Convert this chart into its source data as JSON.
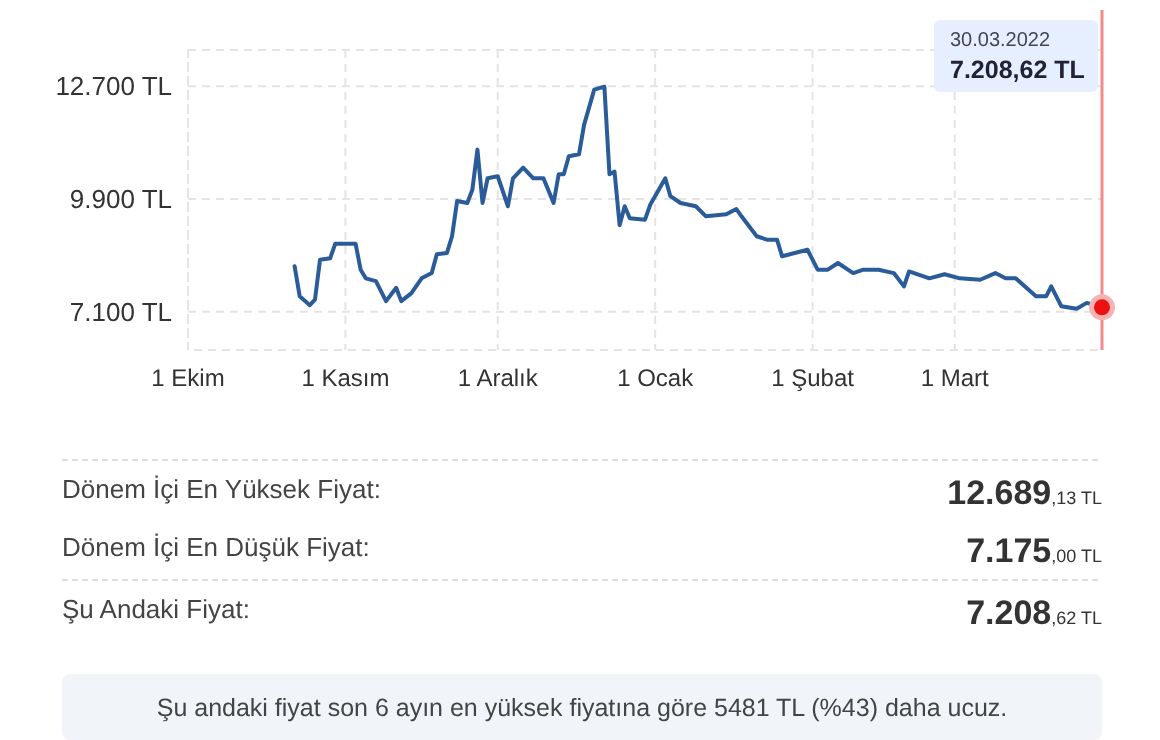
{
  "chart_data": {
    "type": "line",
    "x": [
      "2021-10-22",
      "2021-10-23",
      "2021-10-25",
      "2021-10-26",
      "2021-10-27",
      "2021-10-29",
      "2021-10-30",
      "2021-11-03",
      "2021-11-04",
      "2021-11-05",
      "2021-11-07",
      "2021-11-09",
      "2021-11-11",
      "2021-11-12",
      "2021-11-14",
      "2021-11-16",
      "2021-11-18",
      "2021-11-19",
      "2021-11-21",
      "2021-11-22",
      "2021-11-23",
      "2021-11-25",
      "2021-11-26",
      "2021-11-27",
      "2021-11-28",
      "2021-11-29",
      "2021-12-01",
      "2021-12-03",
      "2021-12-04",
      "2021-12-06",
      "2021-12-08",
      "2021-12-10",
      "2021-12-12",
      "2021-12-13",
      "2021-12-14",
      "2021-12-15",
      "2021-12-17",
      "2021-12-18",
      "2021-12-20",
      "2021-12-22",
      "2021-12-23",
      "2021-12-24",
      "2021-12-25",
      "2021-12-26",
      "2021-12-27",
      "2021-12-30",
      "2021-12-31",
      "2022-01-03",
      "2022-01-04",
      "2022-01-06",
      "2022-01-09",
      "2022-01-11",
      "2022-01-15",
      "2022-01-17",
      "2022-01-18",
      "2022-01-21",
      "2022-01-23",
      "2022-01-25",
      "2022-01-26",
      "2022-01-31",
      "2022-02-02",
      "2022-02-04",
      "2022-02-06",
      "2022-02-09",
      "2022-02-11",
      "2022-02-14",
      "2022-02-17",
      "2022-02-19",
      "2022-02-20",
      "2022-02-24",
      "2022-02-27",
      "2022-03-02",
      "2022-03-06",
      "2022-03-09",
      "2022-03-11",
      "2022-03-13",
      "2022-03-17",
      "2022-03-19",
      "2022-03-20",
      "2022-03-22",
      "2022-03-25",
      "2022-03-27",
      "2022-03-30"
    ],
    "series": [
      {
        "color": "#2b5c9a",
        "values": [
          8228,
          7483,
          7264,
          7398,
          8392,
          8427,
          8790,
          8790,
          8144,
          7930,
          7860,
          7363,
          7696,
          7363,
          7562,
          7930,
          8060,
          8526,
          8560,
          8975,
          9850,
          9800,
          10130,
          11126,
          9800,
          10415,
          10465,
          9720,
          10415,
          10680,
          10415,
          10415,
          9800,
          10515,
          10515,
          10960,
          11010,
          11740,
          12617,
          12689,
          10515,
          10580,
          9250,
          9720,
          9420,
          9386,
          9750,
          10415,
          9970,
          9800,
          9720,
          9470,
          9520,
          9650,
          9470,
          8975,
          8890,
          8890,
          8477,
          8640,
          8144,
          8144,
          8310,
          8060,
          8144,
          8144,
          8060,
          7730,
          8100,
          7930,
          8030,
          7930,
          7895,
          8060,
          7930,
          7930,
          7483,
          7483,
          7730,
          7234,
          7175,
          7320,
          7208.62
        ]
      }
    ],
    "xlim": [
      "2021-10-01",
      "2022-03-30"
    ],
    "xticks": [
      {
        "value": "2021-10-01",
        "label": "1 Ekim"
      },
      {
        "value": "2021-11-01",
        "label": "1 Kasım"
      },
      {
        "value": "2021-12-01",
        "label": "1 Aralık"
      },
      {
        "value": "2022-01-01",
        "label": "1 Ocak"
      },
      {
        "value": "2022-02-01",
        "label": "1 Şubat"
      },
      {
        "value": "2022-03-01",
        "label": "1 Mart"
      }
    ],
    "ylim": [
      6150,
      13600
    ],
    "yticks": [
      {
        "value": 7100,
        "label": "7.100 TL"
      },
      {
        "value": 9900,
        "label": "9.900 TL"
      },
      {
        "value": 12700,
        "label": "12.700 TL"
      }
    ],
    "grid": true,
    "marker": "none",
    "line_style": "solid",
    "ref_lines": [
      {
        "axis": "x",
        "value": "2022-03-30",
        "color": "#f28b8b"
      }
    ],
    "annotations": [
      "30.03.2022\n7.208,62 TL",
      "Dönem İçi En Yüksek Fiyat:",
      "12.689,13 TL",
      "Dönem İçi En Düşük Fiyat:",
      "7.175,00 TL",
      "Şu Andaki Fiyat:",
      "7.208,62 TL",
      "Şu andaki fiyat son 6 ayın en yüksek fiyatına göre 5481 TL (%43) daha ucuz."
    ]
  }
}
